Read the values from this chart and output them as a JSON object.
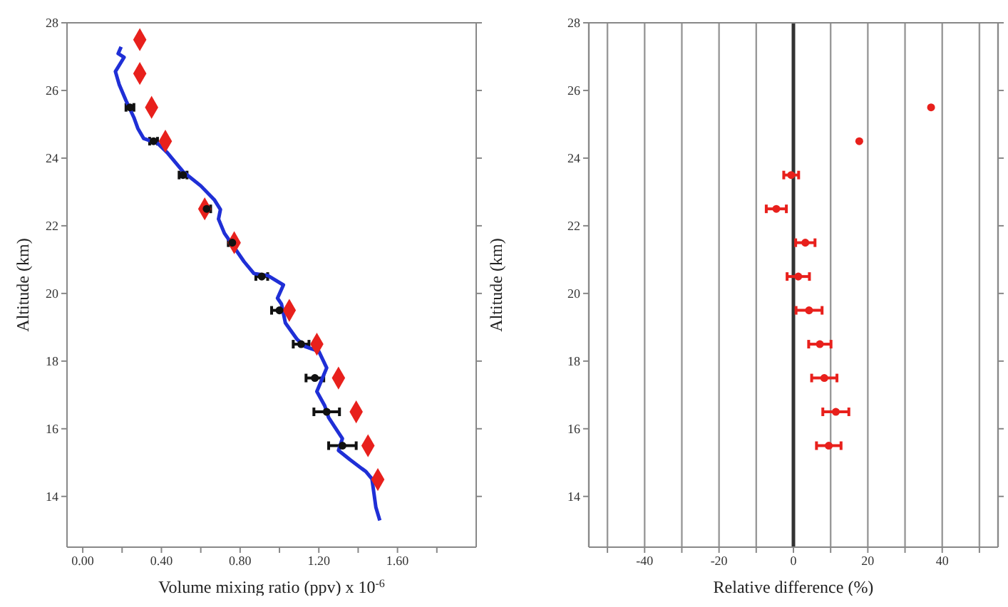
{
  "chart_data": [
    {
      "type": "line",
      "xlabel": "Volume mixing ratio (ppv) x 10$^{-6}$",
      "ylabel": "Altitude (km)",
      "xlim": [
        -0.08,
        2.0
      ],
      "ylim": [
        12.5,
        28
      ],
      "xticks": [
        {
          "value": 0,
          "label": "0.00"
        },
        {
          "value": 0.2,
          "label": null
        },
        {
          "value": 0.4,
          "label": "0.40"
        },
        {
          "value": 0.6,
          "label": null
        },
        {
          "value": 0.8,
          "label": "0.80"
        },
        {
          "value": 1.0,
          "label": null
        },
        {
          "value": 1.2,
          "label": "1.20"
        },
        {
          "value": 1.4,
          "label": null
        },
        {
          "value": 1.6,
          "label": "1.60"
        },
        {
          "value": 1.8,
          "label": null
        }
      ],
      "yticks": [
        14,
        16,
        18,
        20,
        22,
        24,
        26,
        28
      ],
      "grid": false,
      "legend": false,
      "series": [
        {
          "color": "#1f2fd6",
          "marker": "none",
          "line_style": "solid",
          "x": [
            0.195,
            0.18,
            0.21,
            0.166,
            0.185,
            0.22,
            0.26,
            0.28,
            0.31,
            0.38,
            0.43,
            0.51,
            0.6,
            0.67,
            0.7,
            0.69,
            0.72,
            0.77,
            0.82,
            0.87,
            0.94,
            1.02,
            0.99,
            1.01,
            1.03,
            1.09,
            1.13,
            1.2,
            1.24,
            1.21,
            1.19,
            1.23,
            1.25,
            1.28,
            1.32,
            1.3,
            1.36,
            1.44,
            1.47,
            1.48,
            1.49,
            1.51
          ],
          "values": [
            27.29,
            27.09,
            26.98,
            26.56,
            26.18,
            25.7,
            25.2,
            24.88,
            24.58,
            24.44,
            24.16,
            23.6,
            23.18,
            22.76,
            22.48,
            22.2,
            21.78,
            21.36,
            20.94,
            20.59,
            20.53,
            20.25,
            19.86,
            19.69,
            19.13,
            18.64,
            18.43,
            18.29,
            17.8,
            17.38,
            17.1,
            16.68,
            16.33,
            16.06,
            15.71,
            15.36,
            15.08,
            14.73,
            14.52,
            14.1,
            13.68,
            13.29
          ]
        },
        {
          "type": "scatter",
          "color": "#e8201c",
          "marker": "diamond",
          "x": [
            0.29,
            0.29,
            0.35,
            0.42,
            0.62,
            0.77,
            1.05,
            1.19,
            1.3,
            1.39,
            1.45,
            1.5
          ],
          "values": [
            27.5,
            26.5,
            25.5,
            24.5,
            22.5,
            21.5,
            19.5,
            18.5,
            17.5,
            16.5,
            15.5,
            14.5
          ]
        },
        {
          "type": "scatter",
          "color": "#111111",
          "marker": "circle",
          "x": [
            0.24,
            0.36,
            0.51,
            0.63,
            0.76,
            0.91,
            1.0,
            1.11,
            1.18,
            1.24,
            1.32
          ],
          "values": [
            25.5,
            24.5,
            23.5,
            22.5,
            21.5,
            20.5,
            19.5,
            18.5,
            17.5,
            16.5,
            15.5
          ],
          "xerrors": [
            0.02,
            0.02,
            0.02,
            0.02,
            0.02,
            0.03,
            0.04,
            0.04,
            0.045,
            0.065,
            0.07
          ]
        }
      ]
    },
    {
      "type": "scatter",
      "xlabel": "Relative difference (%)",
      "ylabel": "Altitude (km)",
      "xlim": [
        -55,
        55
      ],
      "ylim": [
        12.5,
        28
      ],
      "xticks": [
        {
          "value": -50,
          "label": null
        },
        -40,
        {
          "value": -30,
          "label": null
        },
        -20,
        {
          "value": -10,
          "label": null
        },
        0,
        {
          "value": 10,
          "label": null
        },
        20,
        {
          "value": 30,
          "label": null
        },
        40,
        {
          "value": 50,
          "label": null
        }
      ],
      "yticks": [
        14,
        16,
        18,
        20,
        22,
        24,
        26,
        28
      ],
      "grid": "x",
      "legend": false,
      "ref_lines": [
        {
          "axis": "x",
          "value": 0,
          "color": "#333333"
        }
      ],
      "series": [
        {
          "color": "#e8201c",
          "marker": "circle",
          "x": [
            37,
            17.7,
            -0.6,
            -4.6,
            3.2,
            1.3,
            4.2,
            7.1,
            8.3,
            11.4,
            9.5
          ],
          "values": [
            25.5,
            24.5,
            23.5,
            22.5,
            21.5,
            20.5,
            19.5,
            18.5,
            17.5,
            16.5,
            15.5
          ],
          "xerrors": [
            null,
            null,
            2,
            2.7,
            2.6,
            3,
            3.5,
            3,
            3.4,
            3.5,
            3.3
          ]
        }
      ]
    }
  ]
}
